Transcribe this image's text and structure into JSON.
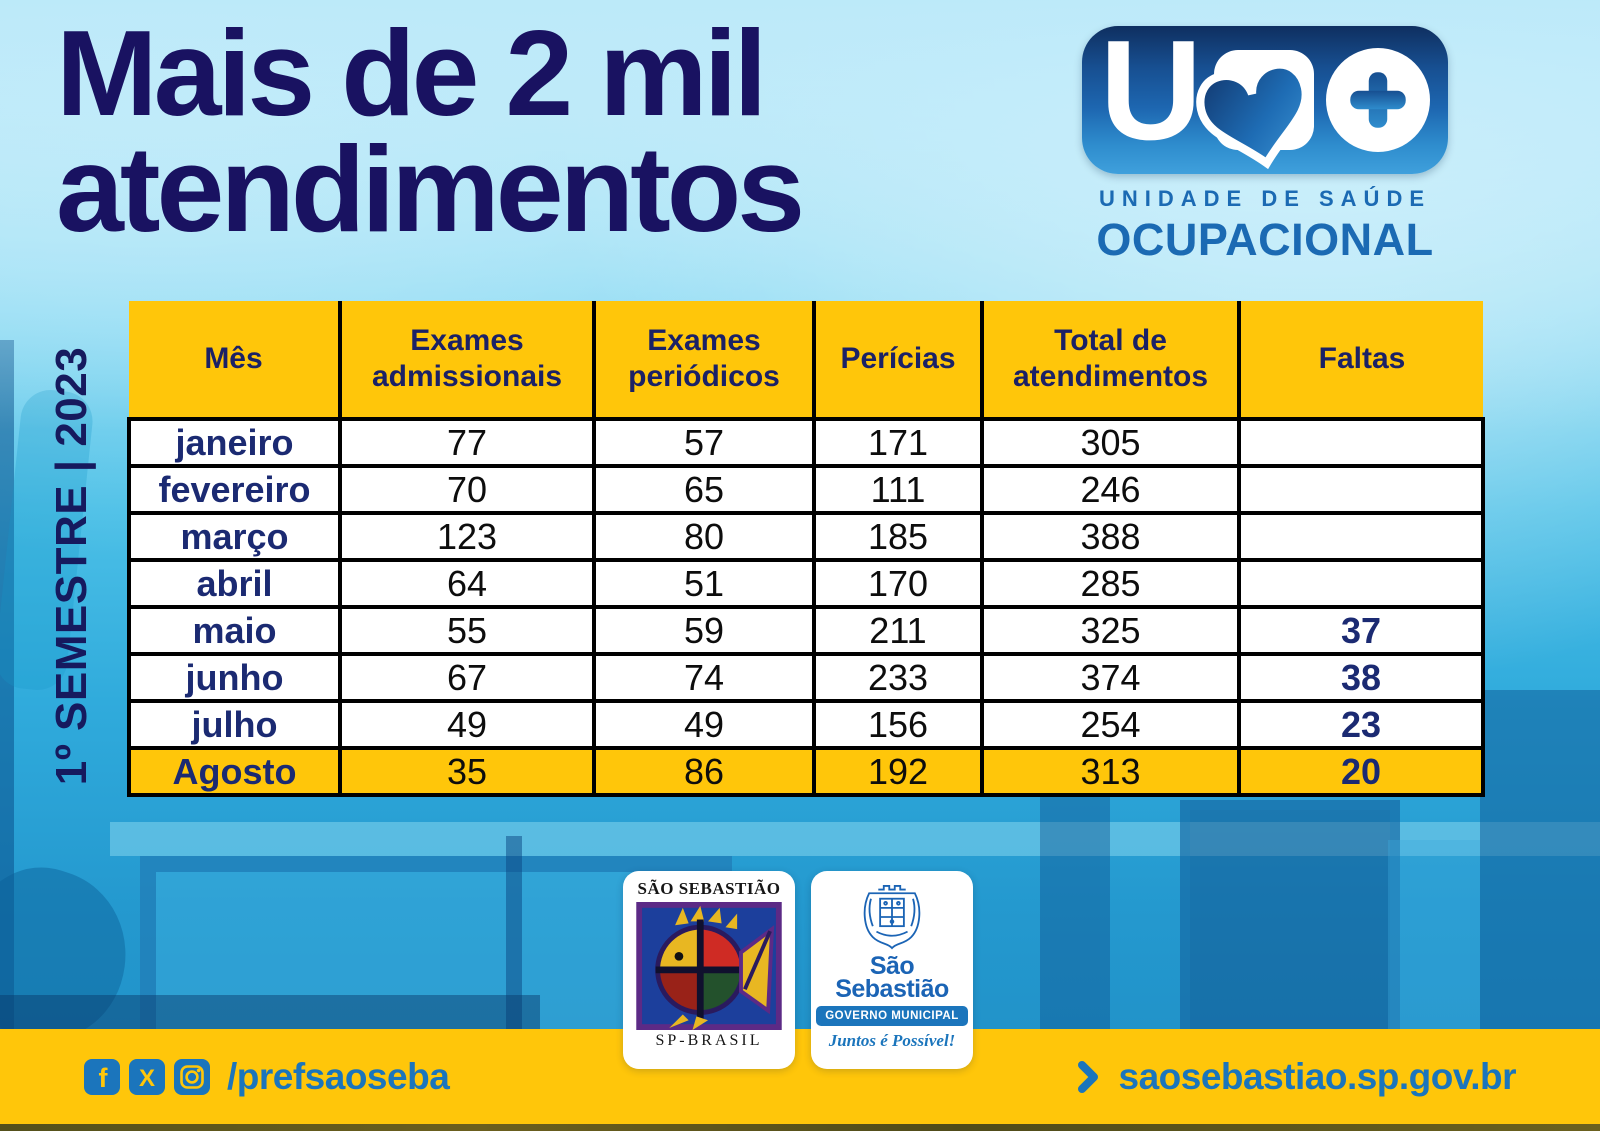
{
  "poster": {
    "title_line1": "Mais de 2 mil",
    "title_line2": "atendimentos",
    "period_label": "1º SEMESTRE | 2023"
  },
  "uso_logo": {
    "letter": "U",
    "org_line1": "UNIDADE DE SAÚDE",
    "org_line2": "OCUPACIONAL"
  },
  "table": {
    "headers": [
      "Mês",
      "Exames admissionais",
      "Exames periódicos",
      "Perícias",
      "Total de atendimentos",
      "Faltas"
    ],
    "rows": [
      {
        "month": "janeiro",
        "values": [
          "77",
          "57",
          "171",
          "305",
          ""
        ],
        "highlight": false
      },
      {
        "month": "fevereiro",
        "values": [
          "70",
          "65",
          "111",
          "246",
          ""
        ],
        "highlight": false
      },
      {
        "month": "março",
        "values": [
          "123",
          "80",
          "185",
          "388",
          ""
        ],
        "highlight": false
      },
      {
        "month": "abril",
        "values": [
          "64",
          "51",
          "170",
          "285",
          ""
        ],
        "highlight": false
      },
      {
        "month": "maio",
        "values": [
          "55",
          "59",
          "211",
          "325",
          "37"
        ],
        "highlight": false
      },
      {
        "month": "junho",
        "values": [
          "67",
          "74",
          "233",
          "374",
          "38"
        ],
        "highlight": false
      },
      {
        "month": "julho",
        "values": [
          "49",
          "49",
          "156",
          "254",
          "23"
        ],
        "highlight": false
      },
      {
        "month": "Agosto",
        "values": [
          "35",
          "86",
          "192",
          "313",
          "20"
        ],
        "highlight": true
      }
    ]
  },
  "seals": {
    "fish_seal": {
      "top_text": "SÃO SEBASTIÃO",
      "bottom_text": "SP-BRASIL"
    },
    "gov_seal": {
      "city_line1": "São",
      "city_line2": "Sebastião",
      "gov_label": "GOVERNO MUNICIPAL",
      "slogan": "Juntos é Possível!"
    }
  },
  "footer": {
    "social_icons": [
      "facebook-icon",
      "x-icon",
      "instagram-icon"
    ],
    "social_handle": "/prefsaoseba",
    "website": "saosebastiao.sp.gov.br"
  },
  "colors": {
    "yellow": "#FFC60A",
    "navy_title": "#191261",
    "table_navy": "#1B2A72",
    "link_blue": "#1B75BC",
    "logo_blue_dark": "#0F2F60",
    "logo_blue_light": "#3FA0DC"
  }
}
